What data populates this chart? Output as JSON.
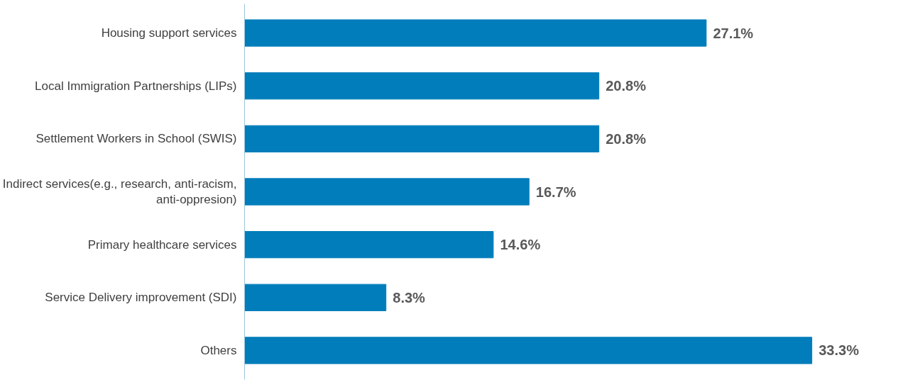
{
  "chart_data": {
    "type": "bar",
    "orientation": "horizontal",
    "categories": [
      "Housing support services",
      "Local Immigration Partnerships (LIPs)",
      "Settlement Workers in School (SWIS)",
      "Indirect services(e.g., research, anti-racism, anti-oppresion)",
      "Primary healthcare services",
      "Service Delivery improvement (SDI)",
      "Others"
    ],
    "values": [
      27.1,
      20.8,
      20.8,
      16.7,
      14.6,
      8.3,
      33.3
    ],
    "value_labels": [
      "27.1%",
      "20.8%",
      "20.8%",
      "16.7%",
      "14.6%",
      "8.3%",
      "33.3%"
    ],
    "color": "#007dba",
    "grid": false
  }
}
